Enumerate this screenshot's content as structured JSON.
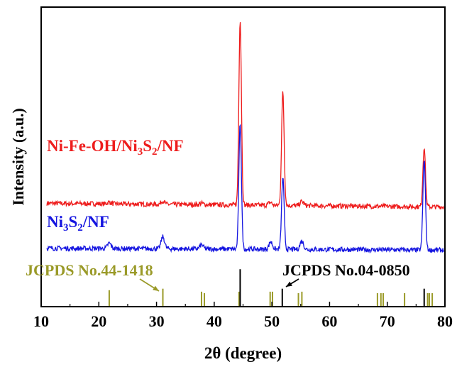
{
  "chart_data": {
    "type": "line",
    "title": "",
    "xlabel": "2θ (degree)",
    "ylabel": "Intensity (a.u.)",
    "xlim": [
      10,
      80
    ],
    "xticks": [
      10,
      20,
      30,
      40,
      50,
      60,
      70,
      80
    ],
    "ylim": [
      0,
      1
    ],
    "grid": false,
    "colors": {
      "ni_fe": "#ee1c1c",
      "ni3s2": "#1515e0",
      "ref_nickel": "#9a9a28",
      "ref_nf": "#000000",
      "axis": "#000000"
    },
    "series": [
      {
        "name": "Ni-Fe-OH/Ni3S2/NF",
        "label_parts": [
          {
            "text": "Ni-Fe-OH/Ni",
            "sub": false
          },
          {
            "text": "3",
            "sub": true
          },
          {
            "text": "S",
            "sub": false
          },
          {
            "text": "2",
            "sub": true
          },
          {
            "text": "/NF",
            "sub": false
          }
        ],
        "color": "#ee1c1c",
        "baseline": 0.345,
        "baseline_slope": -0.012,
        "noise": 0.008,
        "peaks": [
          {
            "x": 21.8,
            "h": 0.006
          },
          {
            "x": 31.1,
            "h": 0.012
          },
          {
            "x": 37.8,
            "h": 0.005
          },
          {
            "x": 44.5,
            "h": 0.62
          },
          {
            "x": 49.7,
            "h": 0.01
          },
          {
            "x": 51.9,
            "h": 0.38
          },
          {
            "x": 55.2,
            "h": 0.014
          },
          {
            "x": 76.4,
            "h": 0.2
          }
        ]
      },
      {
        "name": "Ni3S2/NF",
        "label_parts": [
          {
            "text": "Ni",
            "sub": false
          },
          {
            "text": "3",
            "sub": true
          },
          {
            "text": "S",
            "sub": false
          },
          {
            "text": "2",
            "sub": true
          },
          {
            "text": "/NF",
            "sub": false
          }
        ],
        "color": "#1515e0",
        "baseline": 0.195,
        "baseline_slope": -0.006,
        "noise": 0.008,
        "peaks": [
          {
            "x": 21.8,
            "h": 0.018
          },
          {
            "x": 31.1,
            "h": 0.04
          },
          {
            "x": 37.8,
            "h": 0.014
          },
          {
            "x": 44.5,
            "h": 0.42
          },
          {
            "x": 49.8,
            "h": 0.025
          },
          {
            "x": 51.9,
            "h": 0.24
          },
          {
            "x": 55.2,
            "h": 0.028
          },
          {
            "x": 76.4,
            "h": 0.3
          }
        ]
      }
    ],
    "references": [
      {
        "name": "JCPDS No.44-1418",
        "color": "#9a9a28",
        "positions": [
          21.8,
          31.1,
          37.8,
          38.3,
          44.3,
          49.7,
          50.1,
          54.6,
          55.2,
          68.3,
          68.9,
          69.3,
          73.0,
          77.0,
          77.3,
          77.8
        ],
        "heights": [
          0.055,
          0.06,
          0.05,
          0.045,
          0.05,
          0.05,
          0.05,
          0.045,
          0.05,
          0.045,
          0.045,
          0.045,
          0.045,
          0.045,
          0.045,
          0.045
        ]
      },
      {
        "name": "JCPDS No.04-0850",
        "color": "#000000",
        "positions": [
          44.5,
          51.8,
          76.4
        ],
        "heights": [
          0.125,
          0.06,
          0.06
        ]
      }
    ]
  }
}
